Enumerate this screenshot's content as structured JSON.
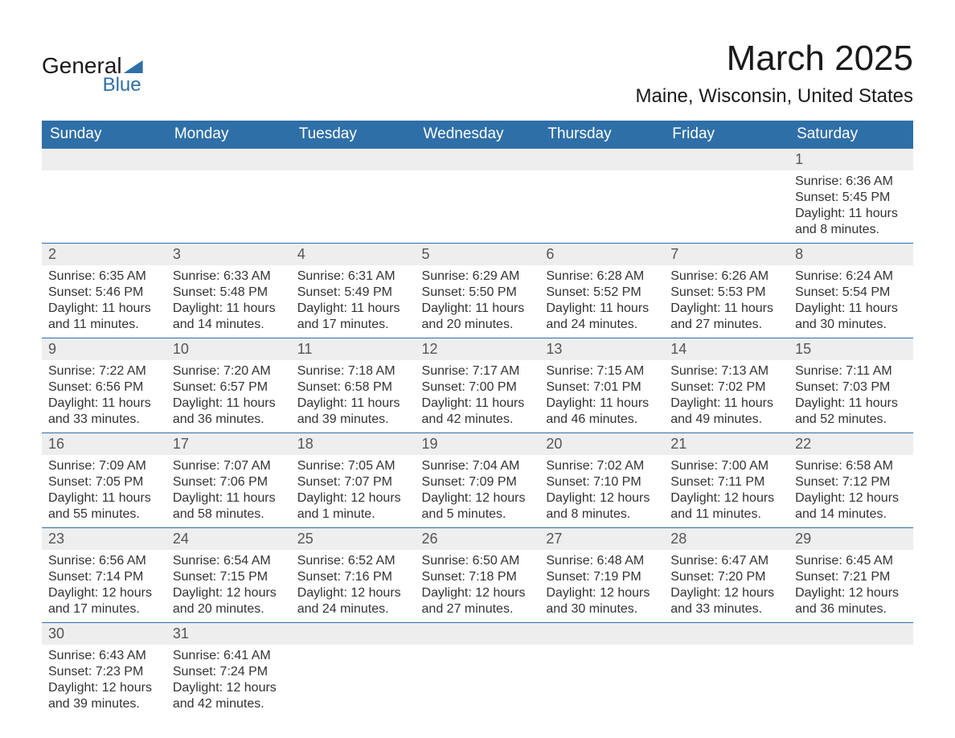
{
  "logo": {
    "word1": "General",
    "word2": "Blue"
  },
  "title": "March 2025",
  "location": "Maine, Wisconsin, United States",
  "weekday_headers": [
    "Sunday",
    "Monday",
    "Tuesday",
    "Wednesday",
    "Thursday",
    "Friday",
    "Saturday"
  ],
  "colors": {
    "header_bg": "#2f6fa7",
    "header_text": "#ffffff",
    "daynum_bg": "#eeeeee",
    "daynum_text": "#555555",
    "body_text": "#333333",
    "row_border": "#2f6fa7",
    "logo_accent": "#2f6fa7"
  },
  "typography": {
    "title_fontsize_pt": 33,
    "location_fontsize_pt": 18,
    "header_fontsize_pt": 14,
    "daynum_fontsize_pt": 13,
    "body_fontsize_pt": 12,
    "font_family": "Arial"
  },
  "layout": {
    "start_weekday_index": 6,
    "days_in_month": 31,
    "columns": 7,
    "rows": 6
  },
  "days": [
    {
      "n": 1,
      "sunrise": "6:36 AM",
      "sunset": "5:45 PM",
      "daylight": "11 hours and 8 minutes."
    },
    {
      "n": 2,
      "sunrise": "6:35 AM",
      "sunset": "5:46 PM",
      "daylight": "11 hours and 11 minutes."
    },
    {
      "n": 3,
      "sunrise": "6:33 AM",
      "sunset": "5:48 PM",
      "daylight": "11 hours and 14 minutes."
    },
    {
      "n": 4,
      "sunrise": "6:31 AM",
      "sunset": "5:49 PM",
      "daylight": "11 hours and 17 minutes."
    },
    {
      "n": 5,
      "sunrise": "6:29 AM",
      "sunset": "5:50 PM",
      "daylight": "11 hours and 20 minutes."
    },
    {
      "n": 6,
      "sunrise": "6:28 AM",
      "sunset": "5:52 PM",
      "daylight": "11 hours and 24 minutes."
    },
    {
      "n": 7,
      "sunrise": "6:26 AM",
      "sunset": "5:53 PM",
      "daylight": "11 hours and 27 minutes."
    },
    {
      "n": 8,
      "sunrise": "6:24 AM",
      "sunset": "5:54 PM",
      "daylight": "11 hours and 30 minutes."
    },
    {
      "n": 9,
      "sunrise": "7:22 AM",
      "sunset": "6:56 PM",
      "daylight": "11 hours and 33 minutes."
    },
    {
      "n": 10,
      "sunrise": "7:20 AM",
      "sunset": "6:57 PM",
      "daylight": "11 hours and 36 minutes."
    },
    {
      "n": 11,
      "sunrise": "7:18 AM",
      "sunset": "6:58 PM",
      "daylight": "11 hours and 39 minutes."
    },
    {
      "n": 12,
      "sunrise": "7:17 AM",
      "sunset": "7:00 PM",
      "daylight": "11 hours and 42 minutes."
    },
    {
      "n": 13,
      "sunrise": "7:15 AM",
      "sunset": "7:01 PM",
      "daylight": "11 hours and 46 minutes."
    },
    {
      "n": 14,
      "sunrise": "7:13 AM",
      "sunset": "7:02 PM",
      "daylight": "11 hours and 49 minutes."
    },
    {
      "n": 15,
      "sunrise": "7:11 AM",
      "sunset": "7:03 PM",
      "daylight": "11 hours and 52 minutes."
    },
    {
      "n": 16,
      "sunrise": "7:09 AM",
      "sunset": "7:05 PM",
      "daylight": "11 hours and 55 minutes."
    },
    {
      "n": 17,
      "sunrise": "7:07 AM",
      "sunset": "7:06 PM",
      "daylight": "11 hours and 58 minutes."
    },
    {
      "n": 18,
      "sunrise": "7:05 AM",
      "sunset": "7:07 PM",
      "daylight": "12 hours and 1 minute."
    },
    {
      "n": 19,
      "sunrise": "7:04 AM",
      "sunset": "7:09 PM",
      "daylight": "12 hours and 5 minutes."
    },
    {
      "n": 20,
      "sunrise": "7:02 AM",
      "sunset": "7:10 PM",
      "daylight": "12 hours and 8 minutes."
    },
    {
      "n": 21,
      "sunrise": "7:00 AM",
      "sunset": "7:11 PM",
      "daylight": "12 hours and 11 minutes."
    },
    {
      "n": 22,
      "sunrise": "6:58 AM",
      "sunset": "7:12 PM",
      "daylight": "12 hours and 14 minutes."
    },
    {
      "n": 23,
      "sunrise": "6:56 AM",
      "sunset": "7:14 PM",
      "daylight": "12 hours and 17 minutes."
    },
    {
      "n": 24,
      "sunrise": "6:54 AM",
      "sunset": "7:15 PM",
      "daylight": "12 hours and 20 minutes."
    },
    {
      "n": 25,
      "sunrise": "6:52 AM",
      "sunset": "7:16 PM",
      "daylight": "12 hours and 24 minutes."
    },
    {
      "n": 26,
      "sunrise": "6:50 AM",
      "sunset": "7:18 PM",
      "daylight": "12 hours and 27 minutes."
    },
    {
      "n": 27,
      "sunrise": "6:48 AM",
      "sunset": "7:19 PM",
      "daylight": "12 hours and 30 minutes."
    },
    {
      "n": 28,
      "sunrise": "6:47 AM",
      "sunset": "7:20 PM",
      "daylight": "12 hours and 33 minutes."
    },
    {
      "n": 29,
      "sunrise": "6:45 AM",
      "sunset": "7:21 PM",
      "daylight": "12 hours and 36 minutes."
    },
    {
      "n": 30,
      "sunrise": "6:43 AM",
      "sunset": "7:23 PM",
      "daylight": "12 hours and 39 minutes."
    },
    {
      "n": 31,
      "sunrise": "6:41 AM",
      "sunset": "7:24 PM",
      "daylight": "12 hours and 42 minutes."
    }
  ],
  "labels": {
    "sunrise": "Sunrise:",
    "sunset": "Sunset:",
    "daylight": "Daylight:"
  }
}
